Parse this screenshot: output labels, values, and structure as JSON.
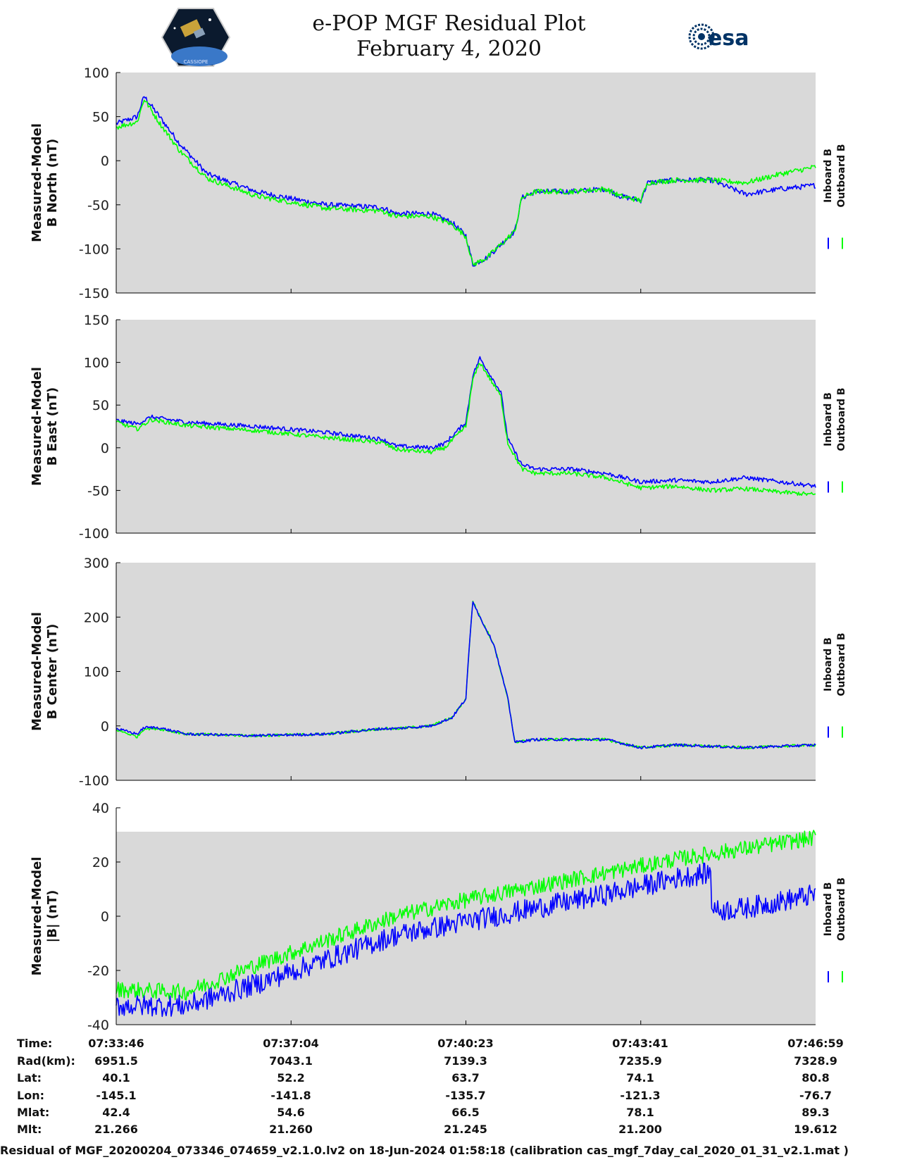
{
  "title_line1": "e-POP MGF Residual Plot",
  "title_line2": "February 4, 2020",
  "logo_left": "CASSIOPE",
  "logo_right": "esa",
  "colors": {
    "inboard": "#0000ff",
    "outboard": "#00ff00",
    "panel_bg": "#d9d9d9"
  },
  "chart_data": [
    {
      "type": "line",
      "ylabel_line1": "Measured-Model",
      "ylabel_line2": "B North (nT)",
      "ylim": [
        -150,
        100
      ],
      "yticks": [
        {
          "v": 100,
          "label": "100"
        },
        {
          "v": 50,
          "label": "50"
        },
        {
          "v": 0,
          "label": "0"
        },
        {
          "v": -50,
          "label": "-50"
        },
        {
          "v": -100,
          "label": "-100"
        },
        {
          "v": -150,
          "label": "-150"
        }
      ],
      "legend": [
        "Inboard B",
        "Outboard B"
      ],
      "series": [
        {
          "name": "Inboard B",
          "color": "#0000ff",
          "noise": 3,
          "x": [
            0,
            0.03,
            0.04,
            0.06,
            0.09,
            0.13,
            0.2,
            0.25,
            0.3,
            0.38,
            0.4,
            0.45,
            0.48,
            0.5,
            0.51,
            0.53,
            0.55,
            0.57,
            0.58,
            0.6,
            0.65,
            0.7,
            0.72,
            0.75,
            0.76,
            0.8,
            0.85,
            0.9,
            0.95,
            1
          ],
          "y": [
            42,
            50,
            73,
            52,
            20,
            -15,
            -35,
            -43,
            -50,
            -53,
            -60,
            -60,
            -70,
            -85,
            -118,
            -110,
            -95,
            -80,
            -42,
            -35,
            -35,
            -32,
            -40,
            -45,
            -25,
            -22,
            -22,
            -38,
            -32,
            -28
          ]
        },
        {
          "name": "Outboard B",
          "color": "#00ff00",
          "noise": 3,
          "x": [
            0,
            0.03,
            0.04,
            0.06,
            0.09,
            0.13,
            0.2,
            0.25,
            0.3,
            0.38,
            0.4,
            0.45,
            0.48,
            0.5,
            0.51,
            0.53,
            0.55,
            0.57,
            0.58,
            0.6,
            0.65,
            0.7,
            0.72,
            0.75,
            0.76,
            0.8,
            0.85,
            0.9,
            0.95,
            1
          ],
          "y": [
            38,
            44,
            70,
            45,
            12,
            -20,
            -40,
            -47,
            -54,
            -57,
            -63,
            -63,
            -72,
            -86,
            -118,
            -110,
            -95,
            -80,
            -42,
            -35,
            -35,
            -32,
            -40,
            -45,
            -25,
            -22,
            -22,
            -25,
            -15,
            -7
          ]
        }
      ]
    },
    {
      "type": "line",
      "ylabel_line1": "Measured-Model",
      "ylabel_line2": "B East (nT)",
      "ylim": [
        -100,
        150
      ],
      "yticks": [
        {
          "v": 150,
          "label": "150"
        },
        {
          "v": 100,
          "label": "100"
        },
        {
          "v": 50,
          "label": "50"
        },
        {
          "v": 0,
          "label": "0"
        },
        {
          "v": -50,
          "label": "-50"
        },
        {
          "v": -100,
          "label": "-100"
        }
      ],
      "legend": [
        "Inboard B",
        "Outboard B"
      ],
      "series": [
        {
          "name": "Inboard B",
          "color": "#0000ff",
          "noise": 2.5,
          "x": [
            0,
            0.03,
            0.05,
            0.1,
            0.2,
            0.3,
            0.38,
            0.4,
            0.45,
            0.47,
            0.5,
            0.51,
            0.52,
            0.55,
            0.56,
            0.58,
            0.6,
            0.65,
            0.7,
            0.75,
            0.8,
            0.85,
            0.9,
            0.95,
            1
          ],
          "y": [
            32,
            28,
            36,
            30,
            25,
            18,
            10,
            2,
            0,
            5,
            30,
            85,
            105,
            65,
            10,
            -20,
            -25,
            -25,
            -30,
            -40,
            -38,
            -40,
            -35,
            -40,
            -45
          ]
        },
        {
          "name": "Outboard B",
          "color": "#00ff00",
          "noise": 2.5,
          "x": [
            0,
            0.03,
            0.05,
            0.1,
            0.2,
            0.3,
            0.38,
            0.4,
            0.45,
            0.47,
            0.5,
            0.51,
            0.52,
            0.55,
            0.56,
            0.58,
            0.6,
            0.65,
            0.7,
            0.75,
            0.8,
            0.85,
            0.9,
            0.95,
            1
          ],
          "y": [
            30,
            22,
            33,
            26,
            20,
            12,
            6,
            -2,
            -5,
            0,
            25,
            80,
            100,
            60,
            5,
            -25,
            -30,
            -30,
            -35,
            -47,
            -45,
            -50,
            -48,
            -52,
            -55
          ]
        }
      ]
    },
    {
      "type": "line",
      "ylabel_line1": "Measured-Model",
      "ylabel_line2": "B Center (nT)",
      "ylim": [
        -100,
        300
      ],
      "yticks": [
        {
          "v": 300,
          "label": "300"
        },
        {
          "v": 200,
          "label": "200"
        },
        {
          "v": 100,
          "label": "100"
        },
        {
          "v": 0,
          "label": "0"
        },
        {
          "v": -100,
          "label": "-100"
        }
      ],
      "legend": [
        "Inboard B",
        "Outboard B"
      ],
      "series": [
        {
          "name": "Outboard B",
          "color": "#00ff00",
          "noise": 2.5,
          "x": [
            0,
            0.03,
            0.04,
            0.06,
            0.1,
            0.2,
            0.3,
            0.38,
            0.4,
            0.45,
            0.48,
            0.5,
            0.505,
            0.51,
            0.52,
            0.54,
            0.56,
            0.57,
            0.6,
            0.7,
            0.75,
            0.8,
            0.9,
            1
          ],
          "y": [
            -7,
            -20,
            -5,
            -5,
            -15,
            -18,
            -15,
            -5,
            -5,
            0,
            15,
            50,
            150,
            230,
            200,
            150,
            50,
            -30,
            -25,
            -25,
            -40,
            -35,
            -40,
            -35
          ]
        },
        {
          "name": "Inboard B",
          "color": "#0000ff",
          "noise": 2.5,
          "x": [
            0,
            0.03,
            0.04,
            0.06,
            0.1,
            0.2,
            0.3,
            0.38,
            0.4,
            0.45,
            0.48,
            0.5,
            0.505,
            0.51,
            0.52,
            0.54,
            0.56,
            0.57,
            0.6,
            0.7,
            0.75,
            0.8,
            0.9,
            1
          ],
          "y": [
            -5,
            -15,
            -3,
            -3,
            -15,
            -18,
            -15,
            -5,
            -5,
            0,
            15,
            50,
            150,
            230,
            200,
            150,
            50,
            -30,
            -25,
            -25,
            -40,
            -35,
            -40,
            -35
          ]
        }
      ]
    },
    {
      "type": "line",
      "ylabel_line1": "Measured-Model",
      "ylabel_line2": "|B| (nT)",
      "ylim": [
        -40,
        40
      ],
      "yticks": [
        {
          "v": 40,
          "label": "40"
        },
        {
          "v": 20,
          "label": "20"
        },
        {
          "v": 0,
          "label": "0"
        },
        {
          "v": -20,
          "label": "-20"
        },
        {
          "v": -40,
          "label": "-40"
        }
      ],
      "legend": [
        "Inboard B",
        "Outboard B"
      ],
      "series": [
        {
          "name": "Outboard B",
          "color": "#00ff00",
          "noise": 3,
          "x": [
            0,
            0.1,
            0.2,
            0.3,
            0.4,
            0.5,
            0.6,
            0.7,
            0.8,
            0.85,
            0.9,
            1
          ],
          "y": [
            -27,
            -28,
            -18,
            -9,
            0,
            6,
            11,
            16,
            21,
            23,
            25,
            29
          ]
        },
        {
          "name": "Inboard B",
          "color": "#0000ff",
          "noise": 4,
          "x": [
            0,
            0.1,
            0.2,
            0.3,
            0.4,
            0.5,
            0.6,
            0.7,
            0.8,
            0.85,
            0.851,
            0.86,
            0.9,
            1
          ],
          "y": [
            -33,
            -33,
            -25,
            -16,
            -7,
            -2,
            3,
            8,
            14,
            16,
            5,
            2,
            3,
            8
          ]
        }
      ]
    }
  ],
  "orbit": {
    "labels": [
      "Time:",
      "Rad(km):",
      "Lat:",
      "Lon:",
      "Mlat:",
      "Mlt:"
    ],
    "columns": [
      [
        "07:33:46",
        "6951.5",
        "40.1",
        "-145.1",
        "42.4",
        "21.266"
      ],
      [
        "07:37:04",
        "7043.1",
        "52.2",
        "-141.8",
        "54.6",
        "21.260"
      ],
      [
        "07:40:23",
        "7139.3",
        "63.7",
        "-135.7",
        "66.5",
        "21.245"
      ],
      [
        "07:43:41",
        "7235.9",
        "74.1",
        "-121.3",
        "78.1",
        "21.200"
      ],
      [
        "07:46:59",
        "7328.9",
        "80.8",
        "-76.7",
        "89.3",
        "19.612"
      ]
    ]
  },
  "footer": "Residual of MGF_20200204_073346_074659_v2.1.0.lv2 on 18-Jun-2024 01:58:18 (calibration cas_mgf_7day_cal_2020_01_31_v2.1.mat )"
}
